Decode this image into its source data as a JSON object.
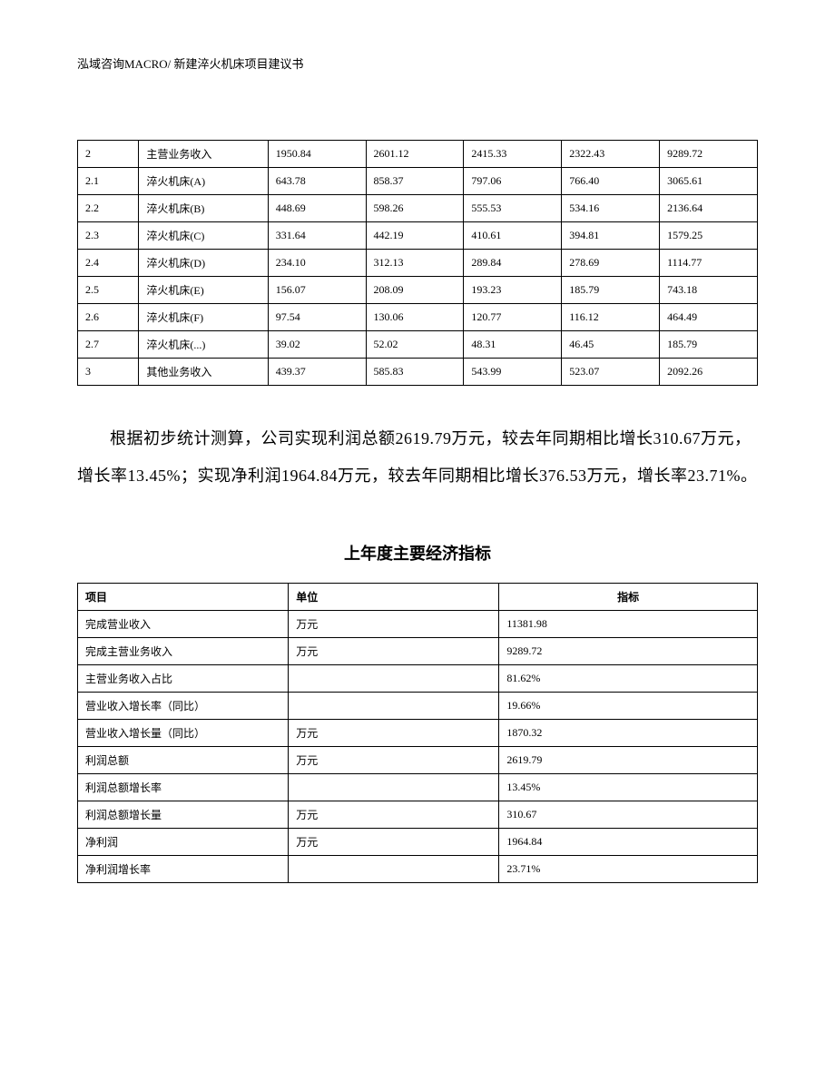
{
  "header": {
    "text": "泓域咨询MACRO/    新建淬火机床项目建议书"
  },
  "table1": {
    "rows": [
      [
        "2",
        "主营业务收入",
        "1950.84",
        "2601.12",
        "2415.33",
        "2322.43",
        "9289.72"
      ],
      [
        "2.1",
        "淬火机床(A)",
        "643.78",
        "858.37",
        "797.06",
        "766.40",
        "3065.61"
      ],
      [
        "2.2",
        "淬火机床(B)",
        "448.69",
        "598.26",
        "555.53",
        "534.16",
        "2136.64"
      ],
      [
        "2.3",
        "淬火机床(C)",
        "331.64",
        "442.19",
        "410.61",
        "394.81",
        "1579.25"
      ],
      [
        "2.4",
        "淬火机床(D)",
        "234.10",
        "312.13",
        "289.84",
        "278.69",
        "1114.77"
      ],
      [
        "2.5",
        "淬火机床(E)",
        "156.07",
        "208.09",
        "193.23",
        "185.79",
        "743.18"
      ],
      [
        "2.6",
        "淬火机床(F)",
        "97.54",
        "130.06",
        "120.77",
        "116.12",
        "464.49"
      ],
      [
        "2.7",
        "淬火机床(...)",
        "39.02",
        "52.02",
        "48.31",
        "46.45",
        "185.79"
      ],
      [
        "3",
        "其他业务收入",
        "439.37",
        "585.83",
        "543.99",
        "523.07",
        "2092.26"
      ]
    ]
  },
  "paragraph": {
    "text": "根据初步统计测算，公司实现利润总额2619.79万元，较去年同期相比增长310.67万元，增长率13.45%；实现净利润1964.84万元，较去年同期相比增长376.53万元，增长率23.71%。"
  },
  "section_title": "上年度主要经济指标",
  "table2": {
    "headers": [
      "项目",
      "单位",
      "指标"
    ],
    "rows": [
      [
        "完成营业收入",
        "万元",
        "11381.98"
      ],
      [
        "完成主营业务收入",
        "万元",
        "9289.72"
      ],
      [
        "主营业务收入占比",
        "",
        "81.62%"
      ],
      [
        "营业收入增长率（同比）",
        "",
        "19.66%"
      ],
      [
        "营业收入增长量（同比）",
        "万元",
        "1870.32"
      ],
      [
        "利润总额",
        "万元",
        "2619.79"
      ],
      [
        "利润总额增长率",
        "",
        "13.45%"
      ],
      [
        "利润总额增长量",
        "万元",
        "310.67"
      ],
      [
        "净利润",
        "万元",
        "1964.84"
      ],
      [
        "净利润增长率",
        "",
        "23.71%"
      ]
    ]
  }
}
